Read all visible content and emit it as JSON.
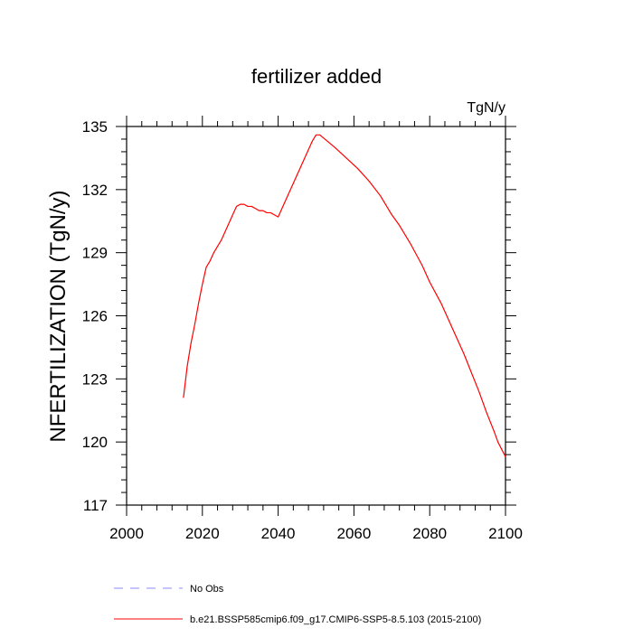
{
  "chart_data": {
    "type": "line",
    "title": "fertilizer added",
    "units_label": "TgN/y",
    "ylabel": "NFERTILIZATION  (TgN/y)",
    "xlabel": "",
    "xlim": [
      2000,
      2100
    ],
    "ylim": [
      117,
      135
    ],
    "x_ticks": [
      2000,
      2020,
      2040,
      2060,
      2080,
      2100
    ],
    "y_ticks": [
      117,
      120,
      123,
      126,
      129,
      132,
      135
    ],
    "grid": false,
    "legend_placement": "bottom",
    "legend": [
      {
        "label": "No Obs",
        "style": "dashed",
        "color": "#8a8aff"
      },
      {
        "label": "b.e21.BSSP585cmip6.f09_g17.CMIP6-SSP5-8.5.103 (2015-2100)",
        "style": "solid",
        "color": "#ff0000"
      }
    ],
    "series": [
      {
        "name": "b.e21.BSSP585cmip6.f09_g17.CMIP6-SSP5-8.5.103 (2015-2100)",
        "color": "#ff0000",
        "x": [
          2015,
          2016,
          2017,
          2018,
          2019,
          2020,
          2021,
          2022,
          2023,
          2024,
          2025,
          2026,
          2027,
          2028,
          2029,
          2030,
          2031,
          2032,
          2033,
          2034,
          2035,
          2036,
          2037,
          2038,
          2039,
          2040,
          2041,
          2042,
          2043,
          2044,
          2045,
          2046,
          2047,
          2048,
          2049,
          2050,
          2051,
          2055,
          2058,
          2061,
          2064,
          2067,
          2069,
          2070,
          2072,
          2075,
          2078,
          2080,
          2083,
          2086,
          2089,
          2091,
          2093,
          2095,
          2097,
          2098,
          2100
        ],
        "y": [
          122.1,
          123.6,
          124.7,
          125.6,
          126.6,
          127.5,
          128.3,
          128.6,
          129.0,
          129.3,
          129.6,
          130.0,
          130.4,
          130.8,
          131.2,
          131.3,
          131.3,
          131.2,
          131.2,
          131.1,
          131.0,
          131.0,
          130.9,
          130.9,
          130.8,
          130.7,
          131.1,
          131.5,
          131.9,
          132.3,
          132.7,
          133.1,
          133.5,
          133.9,
          134.3,
          134.6,
          134.6,
          134.0,
          133.5,
          133.0,
          132.4,
          131.7,
          131.1,
          130.8,
          130.3,
          129.4,
          128.4,
          127.6,
          126.6,
          125.4,
          124.2,
          123.3,
          122.4,
          121.4,
          120.5,
          120.0,
          119.3
        ]
      }
    ]
  }
}
